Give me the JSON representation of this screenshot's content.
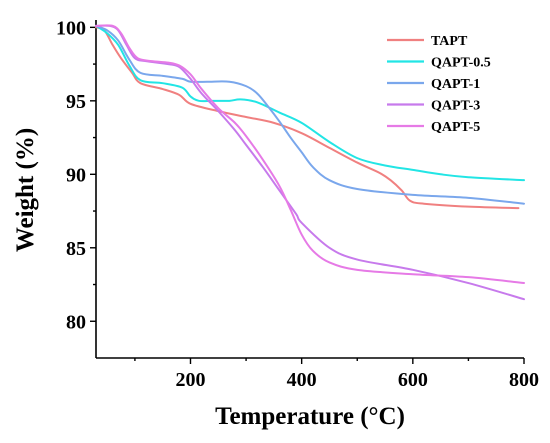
{
  "chart_data": {
    "type": "line",
    "xlabel": "Temperature (°C)",
    "ylabel": "Weight (%)",
    "xlim": [
      30,
      800
    ],
    "ylim": [
      77.5,
      100.5
    ],
    "xticks": [
      200,
      400,
      600,
      800
    ],
    "yticks": [
      80,
      85,
      90,
      95,
      100
    ],
    "legend_position": "top-right",
    "grid": false,
    "series": [
      {
        "name": "TAPT",
        "color": "#f08080",
        "points": [
          [
            30,
            100
          ],
          [
            45,
            99.8
          ],
          [
            60,
            98.8
          ],
          [
            75,
            97.9
          ],
          [
            95,
            96.9
          ],
          [
            110,
            96.2
          ],
          [
            150,
            95.8
          ],
          [
            180,
            95.4
          ],
          [
            200,
            94.8
          ],
          [
            250,
            94.3
          ],
          [
            300,
            93.9
          ],
          [
            350,
            93.5
          ],
          [
            400,
            92.8
          ],
          [
            450,
            91.8
          ],
          [
            500,
            90.8
          ],
          [
            540,
            90.1
          ],
          [
            560,
            89.6
          ],
          [
            580,
            88.9
          ],
          [
            595,
            88.2
          ],
          [
            620,
            88.0
          ],
          [
            700,
            87.8
          ],
          [
            790,
            87.7
          ]
        ]
      },
      {
        "name": "QAPT-0.5",
        "color": "#22e5e5",
        "points": [
          [
            30,
            100.1
          ],
          [
            50,
            99.6
          ],
          [
            70,
            98.8
          ],
          [
            90,
            97.4
          ],
          [
            110,
            96.4
          ],
          [
            150,
            96.2
          ],
          [
            185,
            95.9
          ],
          [
            200,
            95.3
          ],
          [
            215,
            95.0
          ],
          [
            240,
            95.0
          ],
          [
            270,
            95.0
          ],
          [
            290,
            95.1
          ],
          [
            320,
            94.9
          ],
          [
            360,
            94.2
          ],
          [
            400,
            93.5
          ],
          [
            450,
            92.2
          ],
          [
            500,
            91.1
          ],
          [
            550,
            90.6
          ],
          [
            600,
            90.3
          ],
          [
            650,
            90.0
          ],
          [
            700,
            89.8
          ],
          [
            800,
            89.6
          ]
        ]
      },
      {
        "name": "QAPT-1",
        "color": "#7aa7ec",
        "points": [
          [
            30,
            100.1
          ],
          [
            50,
            99.8
          ],
          [
            70,
            99.1
          ],
          [
            90,
            97.8
          ],
          [
            110,
            96.9
          ],
          [
            150,
            96.7
          ],
          [
            185,
            96.5
          ],
          [
            200,
            96.3
          ],
          [
            230,
            96.3
          ],
          [
            270,
            96.3
          ],
          [
            300,
            96.0
          ],
          [
            320,
            95.5
          ],
          [
            340,
            94.6
          ],
          [
            360,
            93.6
          ],
          [
            380,
            92.5
          ],
          [
            400,
            91.5
          ],
          [
            420,
            90.5
          ],
          [
            450,
            89.6
          ],
          [
            500,
            89.0
          ],
          [
            600,
            88.6
          ],
          [
            700,
            88.4
          ],
          [
            800,
            88.0
          ]
        ]
      },
      {
        "name": "QAPT-3",
        "color": "#c77aec",
        "points": [
          [
            30,
            100.1
          ],
          [
            55,
            100.1
          ],
          [
            70,
            99.8
          ],
          [
            85,
            98.8
          ],
          [
            100,
            97.9
          ],
          [
            120,
            97.7
          ],
          [
            160,
            97.5
          ],
          [
            180,
            97.3
          ],
          [
            200,
            96.5
          ],
          [
            220,
            95.5
          ],
          [
            250,
            94.3
          ],
          [
            280,
            93.0
          ],
          [
            300,
            92.0
          ],
          [
            330,
            90.5
          ],
          [
            360,
            88.9
          ],
          [
            390,
            87.3
          ],
          [
            400,
            86.7
          ],
          [
            450,
            85.0
          ],
          [
            500,
            84.2
          ],
          [
            600,
            83.5
          ],
          [
            700,
            82.6
          ],
          [
            800,
            81.5
          ]
        ]
      },
      {
        "name": "QAPT-5",
        "color": "#e67ae6",
        "points": [
          [
            30,
            100.1
          ],
          [
            60,
            100.1
          ],
          [
            75,
            99.6
          ],
          [
            90,
            98.6
          ],
          [
            105,
            97.9
          ],
          [
            130,
            97.7
          ],
          [
            160,
            97.6
          ],
          [
            180,
            97.4
          ],
          [
            200,
            96.8
          ],
          [
            220,
            95.8
          ],
          [
            250,
            94.5
          ],
          [
            280,
            93.5
          ],
          [
            300,
            92.6
          ],
          [
            330,
            91.0
          ],
          [
            360,
            89.2
          ],
          [
            380,
            87.6
          ],
          [
            400,
            85.9
          ],
          [
            420,
            84.8
          ],
          [
            450,
            84.0
          ],
          [
            500,
            83.5
          ],
          [
            600,
            83.2
          ],
          [
            700,
            83.0
          ],
          [
            800,
            82.6
          ]
        ]
      }
    ]
  }
}
